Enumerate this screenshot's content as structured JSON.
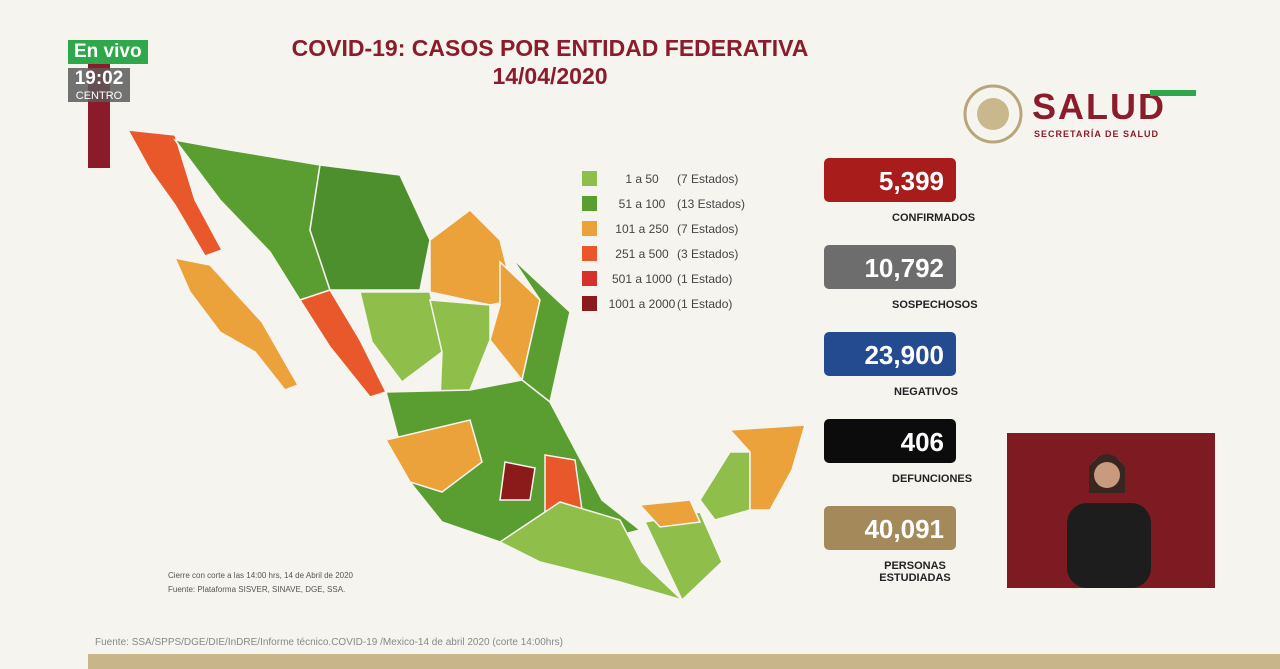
{
  "live": {
    "label": "En vivo",
    "time": "19:02",
    "zone": "CENTRO"
  },
  "header": {
    "title": "COVID-19: CASOS POR ENTIDAD FEDERATIVA",
    "date": "14/04/2020"
  },
  "logo": {
    "name": "SALUD",
    "subtitle": "SECRETARÍA DE SALUD"
  },
  "legend": [
    {
      "range": "1 a 50",
      "count": "(7 Estados)",
      "color": "#8fbf4a"
    },
    {
      "range": "51 a 100",
      "count": "(13 Estados)",
      "color": "#5a9e32"
    },
    {
      "range": "101 a 250",
      "count": "(7 Estados)",
      "color": "#eba23a"
    },
    {
      "range": "251 a 500",
      "count": "(3 Estados)",
      "color": "#e8582a"
    },
    {
      "range": "501 a 1000",
      "count": "(1 Estado)",
      "color": "#d8302a"
    },
    {
      "range": "1001 a 2000",
      "count": "(1 Estado)",
      "color": "#8b1a1a"
    }
  ],
  "stats": [
    {
      "value": "5,399",
      "label": "CONFIRMADOS",
      "color": "#a81c1c"
    },
    {
      "value": "10,792",
      "label": "SOSPECHOSOS",
      "color": "#6d6d6d"
    },
    {
      "value": "23,900",
      "label": "NEGATIVOS",
      "color": "#244b8f"
    },
    {
      "value": "406",
      "label": "DEFUNCIONES",
      "color": "#0c0c0c"
    },
    {
      "value": "40,091",
      "label": "PERSONAS ESTUDIADAS",
      "color": "#a48a5a"
    }
  ],
  "notes": [
    "Cierre con corte a las 14:00 hrs, 14 de Abril de 2020",
    "Fuente: Plataforma SISVER, SINAVE, DGE, SSA."
  ],
  "footer": "Fuente: SSA/SPPS/DGE/DIE/InDRE/Informe técnico.COVID-19 /Mexico-14 de abril 2020 (corte 14:00hrs)"
}
